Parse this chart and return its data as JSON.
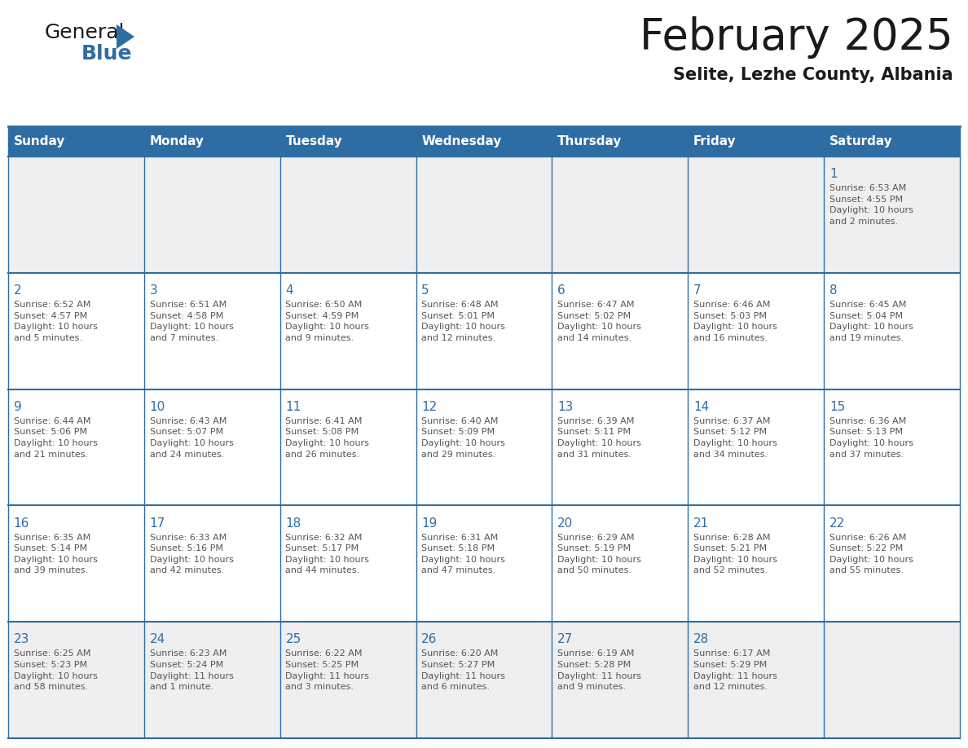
{
  "title": "February 2025",
  "subtitle": "Selite, Lezhe County, Albania",
  "header_bg": "#2E6DA4",
  "header_text_color": "#FFFFFF",
  "cell_bg_week1": "#EFEFEF",
  "cell_bg_normal": "#FFFFFF",
  "cell_bg_last": "#EFEFEF",
  "day_number_color": "#2E6DA4",
  "info_text_color": "#555555",
  "border_color": "#2E6DA4",
  "days_of_week": [
    "Sunday",
    "Monday",
    "Tuesday",
    "Wednesday",
    "Thursday",
    "Friday",
    "Saturday"
  ],
  "weeks": [
    [
      {
        "day": "",
        "info": ""
      },
      {
        "day": "",
        "info": ""
      },
      {
        "day": "",
        "info": ""
      },
      {
        "day": "",
        "info": ""
      },
      {
        "day": "",
        "info": ""
      },
      {
        "day": "",
        "info": ""
      },
      {
        "day": "1",
        "info": "Sunrise: 6:53 AM\nSunset: 4:55 PM\nDaylight: 10 hours\nand 2 minutes."
      }
    ],
    [
      {
        "day": "2",
        "info": "Sunrise: 6:52 AM\nSunset: 4:57 PM\nDaylight: 10 hours\nand 5 minutes."
      },
      {
        "day": "3",
        "info": "Sunrise: 6:51 AM\nSunset: 4:58 PM\nDaylight: 10 hours\nand 7 minutes."
      },
      {
        "day": "4",
        "info": "Sunrise: 6:50 AM\nSunset: 4:59 PM\nDaylight: 10 hours\nand 9 minutes."
      },
      {
        "day": "5",
        "info": "Sunrise: 6:48 AM\nSunset: 5:01 PM\nDaylight: 10 hours\nand 12 minutes."
      },
      {
        "day": "6",
        "info": "Sunrise: 6:47 AM\nSunset: 5:02 PM\nDaylight: 10 hours\nand 14 minutes."
      },
      {
        "day": "7",
        "info": "Sunrise: 6:46 AM\nSunset: 5:03 PM\nDaylight: 10 hours\nand 16 minutes."
      },
      {
        "day": "8",
        "info": "Sunrise: 6:45 AM\nSunset: 5:04 PM\nDaylight: 10 hours\nand 19 minutes."
      }
    ],
    [
      {
        "day": "9",
        "info": "Sunrise: 6:44 AM\nSunset: 5:06 PM\nDaylight: 10 hours\nand 21 minutes."
      },
      {
        "day": "10",
        "info": "Sunrise: 6:43 AM\nSunset: 5:07 PM\nDaylight: 10 hours\nand 24 minutes."
      },
      {
        "day": "11",
        "info": "Sunrise: 6:41 AM\nSunset: 5:08 PM\nDaylight: 10 hours\nand 26 minutes."
      },
      {
        "day": "12",
        "info": "Sunrise: 6:40 AM\nSunset: 5:09 PM\nDaylight: 10 hours\nand 29 minutes."
      },
      {
        "day": "13",
        "info": "Sunrise: 6:39 AM\nSunset: 5:11 PM\nDaylight: 10 hours\nand 31 minutes."
      },
      {
        "day": "14",
        "info": "Sunrise: 6:37 AM\nSunset: 5:12 PM\nDaylight: 10 hours\nand 34 minutes."
      },
      {
        "day": "15",
        "info": "Sunrise: 6:36 AM\nSunset: 5:13 PM\nDaylight: 10 hours\nand 37 minutes."
      }
    ],
    [
      {
        "day": "16",
        "info": "Sunrise: 6:35 AM\nSunset: 5:14 PM\nDaylight: 10 hours\nand 39 minutes."
      },
      {
        "day": "17",
        "info": "Sunrise: 6:33 AM\nSunset: 5:16 PM\nDaylight: 10 hours\nand 42 minutes."
      },
      {
        "day": "18",
        "info": "Sunrise: 6:32 AM\nSunset: 5:17 PM\nDaylight: 10 hours\nand 44 minutes."
      },
      {
        "day": "19",
        "info": "Sunrise: 6:31 AM\nSunset: 5:18 PM\nDaylight: 10 hours\nand 47 minutes."
      },
      {
        "day": "20",
        "info": "Sunrise: 6:29 AM\nSunset: 5:19 PM\nDaylight: 10 hours\nand 50 minutes."
      },
      {
        "day": "21",
        "info": "Sunrise: 6:28 AM\nSunset: 5:21 PM\nDaylight: 10 hours\nand 52 minutes."
      },
      {
        "day": "22",
        "info": "Sunrise: 6:26 AM\nSunset: 5:22 PM\nDaylight: 10 hours\nand 55 minutes."
      }
    ],
    [
      {
        "day": "23",
        "info": "Sunrise: 6:25 AM\nSunset: 5:23 PM\nDaylight: 10 hours\nand 58 minutes."
      },
      {
        "day": "24",
        "info": "Sunrise: 6:23 AM\nSunset: 5:24 PM\nDaylight: 11 hours\nand 1 minute."
      },
      {
        "day": "25",
        "info": "Sunrise: 6:22 AM\nSunset: 5:25 PM\nDaylight: 11 hours\nand 3 minutes."
      },
      {
        "day": "26",
        "info": "Sunrise: 6:20 AM\nSunset: 5:27 PM\nDaylight: 11 hours\nand 6 minutes."
      },
      {
        "day": "27",
        "info": "Sunrise: 6:19 AM\nSunset: 5:28 PM\nDaylight: 11 hours\nand 9 minutes."
      },
      {
        "day": "28",
        "info": "Sunrise: 6:17 AM\nSunset: 5:29 PM\nDaylight: 11 hours\nand 12 minutes."
      },
      {
        "day": "",
        "info": ""
      }
    ]
  ],
  "logo_text1": "General",
  "logo_text2": "Blue",
  "logo_color1": "#1a1a1a",
  "logo_color2": "#2E6DA4",
  "logo_triangle_color": "#2E6DA4",
  "fig_width": 11.88,
  "fig_height": 9.18,
  "title_fontsize": 38,
  "subtitle_fontsize": 15,
  "header_fontsize": 11,
  "day_num_fontsize": 11,
  "info_fontsize": 8
}
